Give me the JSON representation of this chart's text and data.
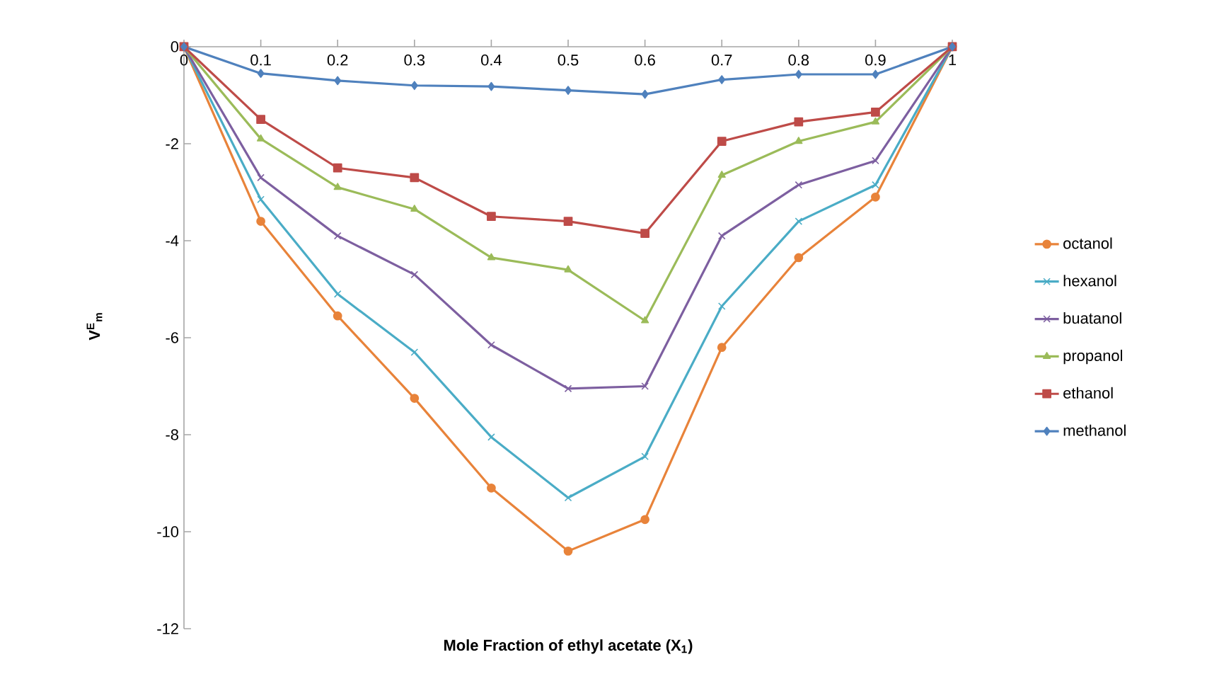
{
  "chart_data": {
    "type": "line",
    "xlabel": "Mole Fraction of ethyl acetate (X$_{1}$)",
    "ylabel": "V$^{E}$$_{m}$",
    "x": [
      0,
      0.1,
      0.2,
      0.3,
      0.4,
      0.5,
      0.6,
      0.7,
      0.8,
      0.9,
      1
    ],
    "xlim": [
      0,
      1
    ],
    "xticks": [
      0,
      0.1,
      0.2,
      0.3,
      0.4,
      0.5,
      0.6,
      0.7,
      0.8,
      0.9,
      1
    ],
    "ylim": [
      -12,
      0
    ],
    "yticks": [
      -12,
      -10,
      -8,
      -6,
      -4,
      -2,
      0
    ],
    "grid": false,
    "legend": "right",
    "line_style": "solid",
    "series": [
      {
        "name": "octanol",
        "color": "#e8833a",
        "marker": "circle",
        "values": [
          0,
          -3.6,
          -5.55,
          -7.25,
          -9.1,
          -10.4,
          -9.75,
          -6.2,
          -4.35,
          -3.1,
          0
        ]
      },
      {
        "name": "hexanol",
        "color": "#4aacc6",
        "marker": "cross",
        "values": [
          0,
          -3.15,
          -5.1,
          -6.3,
          -8.05,
          -9.3,
          -8.45,
          -5.35,
          -3.6,
          -2.85,
          0
        ]
      },
      {
        "name": "buatanol",
        "color": "#7d5fa0",
        "marker": "cross",
        "values": [
          0,
          -2.7,
          -3.9,
          -4.7,
          -6.15,
          -7.05,
          -7.0,
          -3.9,
          -2.85,
          -2.35,
          0
        ]
      },
      {
        "name": "propanol",
        "color": "#9bbb59",
        "marker": "triangle",
        "values": [
          0,
          -1.9,
          -2.9,
          -3.35,
          -4.35,
          -4.6,
          -5.65,
          -2.65,
          -1.95,
          -1.55,
          0
        ]
      },
      {
        "name": "ethanol",
        "color": "#be4b48",
        "marker": "square",
        "values": [
          0,
          -1.5,
          -2.5,
          -2.7,
          -3.5,
          -3.6,
          -3.85,
          -1.95,
          -1.55,
          -1.35,
          0
        ]
      },
      {
        "name": "methanol",
        "color": "#4f81bd",
        "marker": "diamond",
        "values": [
          0,
          -0.55,
          -0.7,
          -0.8,
          -0.82,
          -0.9,
          -0.98,
          -0.68,
          -0.57,
          -0.57,
          0
        ]
      }
    ]
  }
}
